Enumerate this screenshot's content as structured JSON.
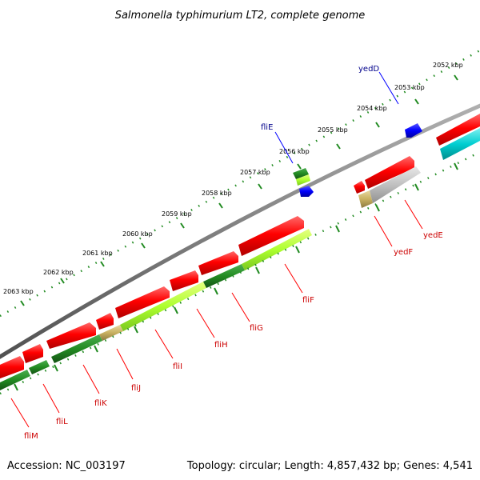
{
  "title": "Salmonella typhimurium LT2, complete genome",
  "footer": {
    "accession": "Accession: NC_003197",
    "summary": "Topology: circular; Length: 4,857,432 bp; Genes: 4,541"
  },
  "colors": {
    "backbone": "#808080",
    "forward_gene": "#ff0000",
    "reverse_gene": "#228b22",
    "reverse_gene_light": "#adff2f",
    "ruler": "#228b22",
    "blue_feature": "#0000ff",
    "cyan_feature": "#00ced1",
    "gray_feature": "#c0c0c0",
    "khaki_feature": "#c8b060",
    "label_red": "#cc0000",
    "label_blue": "#00008b"
  },
  "ruler": {
    "unit": "kbp",
    "labels": [
      "2052 kbp",
      "2053 kbp",
      "2054 kbp",
      "2055 kbp",
      "2056 kbp",
      "2057 kbp",
      "2058 kbp",
      "2059 kbp",
      "2060 kbp",
      "2061 kbp",
      "2062 kbp",
      "2063 kbp"
    ]
  },
  "outer_gene_labels": [
    {
      "name": "yedD"
    },
    {
      "name": "fliE"
    }
  ],
  "inner_gene_labels": [
    {
      "name": "yedE"
    },
    {
      "name": "yedF"
    },
    {
      "name": "fliF"
    },
    {
      "name": "fliG"
    },
    {
      "name": "fliH"
    },
    {
      "name": "fliI"
    },
    {
      "name": "fliJ"
    },
    {
      "name": "fliK"
    },
    {
      "name": "fliL"
    },
    {
      "name": "fliM"
    }
  ]
}
